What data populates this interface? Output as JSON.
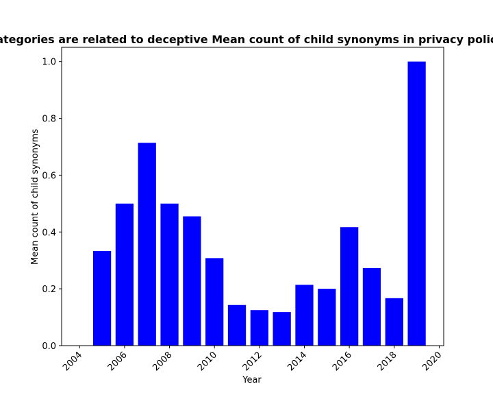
{
  "chart_data": {
    "type": "bar",
    "title": "categories are related to deceptive Mean count of child synonyms in privacy policies",
    "xlabel": "Year",
    "ylabel": "Mean count of child synonyms",
    "x": [
      2005,
      2006,
      2007,
      2008,
      2009,
      2010,
      2011,
      2012,
      2013,
      2014,
      2015,
      2016,
      2017,
      2018,
      2019
    ],
    "values": [
      0.333,
      0.5,
      0.714,
      0.5,
      0.455,
      0.308,
      0.143,
      0.125,
      0.118,
      0.214,
      0.2,
      0.417,
      0.273,
      0.167,
      1.0
    ],
    "xlim": [
      2003.2,
      2020.2
    ],
    "ylim": [
      0,
      1.05
    ],
    "xticks": [
      "2004",
      "2006",
      "2008",
      "2010",
      "2012",
      "2014",
      "2016",
      "2018",
      "2020"
    ],
    "yticks": [
      "0.0",
      "0.2",
      "0.4",
      "0.6",
      "0.8",
      "1.0"
    ],
    "bar_color": "#0000ff",
    "grid": false,
    "legend": "none"
  }
}
